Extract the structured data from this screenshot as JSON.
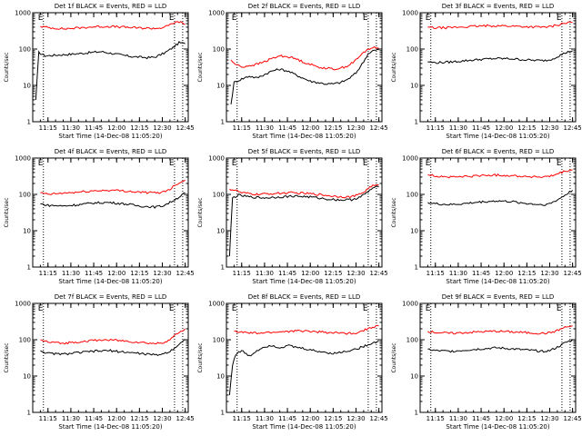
{
  "colors": {
    "events": "#000000",
    "lld": "#ff0000",
    "axes": "#000000",
    "background": "#ffffff"
  },
  "shared_axes": {
    "x_tick_labels": [
      "11:15",
      "11:30",
      "11:45",
      "12:00",
      "12:15",
      "12:30",
      "12:45"
    ],
    "x_ticks_minutes": [
      10,
      25,
      40,
      55,
      70,
      85,
      100
    ],
    "x_range_minutes": [
      0,
      102
    ],
    "xlabel": "Start Time (14-Dec-08 11:05:20)",
    "ylabel": "Counts/sec",
    "y_tick_labels": [
      "1",
      "10",
      "100",
      "1000"
    ],
    "ylim": [
      1,
      1000
    ],
    "y_scale": "log",
    "left_marker_minutes": 7,
    "right_marker_minutes": 93,
    "marker_labels": [
      "E",
      "E"
    ]
  },
  "chart_data": [
    {
      "type": "line",
      "title": "Det 1f BLACK = Events, RED = LLD",
      "series": [
        {
          "color": "black",
          "x_minutes": [
            0,
            2,
            4,
            8,
            15,
            25,
            35,
            45,
            55,
            65,
            75,
            80,
            84,
            88,
            92,
            96,
            100
          ],
          "values": [
            null,
            4,
            80,
            65,
            68,
            72,
            78,
            85,
            72,
            62,
            58,
            60,
            70,
            85,
            110,
            150,
            140
          ]
        },
        {
          "color": "red",
          "x_minutes": [
            0,
            5,
            10,
            20,
            30,
            40,
            50,
            60,
            70,
            80,
            84,
            88,
            92,
            96,
            100
          ],
          "values": [
            null,
            420,
            390,
            360,
            380,
            410,
            420,
            400,
            380,
            370,
            380,
            420,
            520,
            560,
            480
          ]
        }
      ]
    },
    {
      "type": "line",
      "title": "Det 2f BLACK = Events, RED = LLD",
      "series": [
        {
          "color": "black",
          "x_minutes": [
            0,
            3,
            5,
            10,
            15,
            20,
            25,
            30,
            35,
            40,
            45,
            50,
            55,
            60,
            65,
            70,
            75,
            80,
            85,
            90,
            93,
            96,
            100
          ],
          "values": [
            null,
            3,
            12,
            15,
            18,
            16,
            20,
            25,
            28,
            25,
            20,
            16,
            13,
            12,
            11,
            11,
            12,
            15,
            22,
            45,
            75,
            90,
            95
          ]
        },
        {
          "color": "red",
          "x_minutes": [
            0,
            3,
            5,
            10,
            15,
            20,
            25,
            30,
            35,
            40,
            45,
            50,
            55,
            60,
            65,
            70,
            75,
            80,
            85,
            90,
            93,
            96,
            100
          ],
          "values": [
            null,
            50,
            40,
            32,
            35,
            38,
            45,
            55,
            65,
            62,
            55,
            45,
            38,
            32,
            30,
            28,
            30,
            35,
            50,
            80,
            100,
            110,
            105
          ]
        }
      ]
    },
    {
      "type": "line",
      "title": "Det 3f BLACK = Events, RED = LLD",
      "series": [
        {
          "color": "black",
          "x_minutes": [
            0,
            5,
            10,
            20,
            30,
            40,
            50,
            60,
            70,
            80,
            85,
            90,
            95,
            100
          ],
          "values": [
            null,
            45,
            42,
            44,
            48,
            52,
            55,
            54,
            50,
            48,
            50,
            62,
            78,
            90
          ]
        },
        {
          "color": "red",
          "x_minutes": [
            0,
            5,
            10,
            20,
            30,
            40,
            50,
            60,
            70,
            80,
            85,
            90,
            95,
            100
          ],
          "values": [
            null,
            400,
            380,
            390,
            410,
            430,
            440,
            430,
            410,
            400,
            410,
            460,
            520,
            540
          ]
        }
      ]
    },
    {
      "type": "line",
      "title": "Det 4f BLACK = Events, RED = LLD",
      "series": [
        {
          "color": "black",
          "x_minutes": [
            0,
            5,
            10,
            20,
            30,
            40,
            50,
            60,
            70,
            80,
            85,
            90,
            95,
            100
          ],
          "values": [
            null,
            55,
            50,
            48,
            52,
            58,
            60,
            55,
            48,
            45,
            48,
            60,
            80,
            110
          ]
        },
        {
          "color": "red",
          "x_minutes": [
            0,
            5,
            10,
            20,
            30,
            40,
            50,
            60,
            70,
            80,
            85,
            90,
            95,
            100
          ],
          "values": [
            null,
            110,
            100,
            108,
            115,
            125,
            130,
            125,
            115,
            110,
            115,
            140,
            200,
            250
          ]
        }
      ]
    },
    {
      "type": "line",
      "title": "Det 5f BLACK = Events, RED = LLD",
      "series": [
        {
          "color": "black",
          "x_minutes": [
            0,
            2,
            4,
            8,
            15,
            25,
            35,
            45,
            55,
            65,
            75,
            82,
            88,
            92,
            96,
            100
          ],
          "values": [
            null,
            2,
            80,
            95,
            85,
            80,
            85,
            90,
            85,
            75,
            70,
            72,
            85,
            110,
            150,
            160
          ]
        },
        {
          "color": "red",
          "x_minutes": [
            0,
            2,
            6,
            10,
            20,
            30,
            40,
            50,
            60,
            70,
            80,
            85,
            90,
            95,
            100
          ],
          "values": [
            null,
            140,
            130,
            110,
            100,
            105,
            110,
            108,
            100,
            90,
            85,
            92,
            115,
            170,
            180
          ]
        }
      ]
    },
    {
      "type": "line",
      "title": "Det 6f BLACK = Events, RED = LLD",
      "series": [
        {
          "color": "black",
          "x_minutes": [
            0,
            5,
            10,
            20,
            30,
            40,
            50,
            60,
            70,
            80,
            85,
            90,
            95,
            100
          ],
          "values": [
            null,
            60,
            55,
            52,
            56,
            62,
            66,
            63,
            56,
            52,
            55,
            70,
            95,
            130
          ]
        },
        {
          "color": "red",
          "x_minutes": [
            0,
            5,
            10,
            20,
            30,
            40,
            50,
            60,
            70,
            80,
            85,
            90,
            95,
            100
          ],
          "values": [
            null,
            350,
            320,
            300,
            310,
            330,
            340,
            330,
            310,
            300,
            310,
            360,
            430,
            470
          ]
        }
      ]
    },
    {
      "type": "line",
      "title": "Det 7f BLACK = Events, RED = LLD",
      "series": [
        {
          "color": "black",
          "x_minutes": [
            0,
            5,
            10,
            20,
            30,
            40,
            50,
            60,
            70,
            80,
            85,
            90,
            95,
            100
          ],
          "values": [
            null,
            50,
            42,
            40,
            44,
            48,
            50,
            46,
            42,
            38,
            40,
            48,
            70,
            100
          ]
        },
        {
          "color": "red",
          "x_minutes": [
            0,
            5,
            10,
            20,
            30,
            40,
            50,
            60,
            70,
            80,
            85,
            90,
            95,
            100
          ],
          "values": [
            null,
            100,
            85,
            80,
            88,
            95,
            100,
            92,
            85,
            78,
            82,
            100,
            150,
            200
          ]
        }
      ]
    },
    {
      "type": "line",
      "title": "Det 8f BLACK = Events, RED = LLD",
      "series": [
        {
          "color": "black",
          "x_minutes": [
            0,
            2,
            4,
            6,
            10,
            15,
            20,
            25,
            30,
            35,
            40,
            45,
            50,
            55,
            60,
            65,
            70,
            75,
            80,
            85,
            90,
            95,
            100
          ],
          "values": [
            null,
            3,
            20,
            40,
            50,
            35,
            50,
            65,
            70,
            60,
            70,
            62,
            58,
            52,
            48,
            45,
            42,
            45,
            50,
            55,
            65,
            80,
            90
          ]
        },
        {
          "color": "red",
          "x_minutes": [
            0,
            5,
            10,
            20,
            30,
            40,
            50,
            60,
            70,
            80,
            85,
            90,
            95,
            100
          ],
          "values": [
            null,
            170,
            160,
            150,
            160,
            170,
            175,
            165,
            155,
            150,
            155,
            180,
            220,
            240
          ]
        }
      ]
    },
    {
      "type": "line",
      "title": "Det 9f BLACK = Events, RED = LLD",
      "series": [
        {
          "color": "black",
          "x_minutes": [
            0,
            5,
            10,
            20,
            30,
            40,
            50,
            60,
            70,
            80,
            85,
            90,
            95,
            100
          ],
          "values": [
            null,
            55,
            50,
            48,
            52,
            56,
            60,
            56,
            52,
            48,
            50,
            62,
            82,
            100
          ]
        },
        {
          "color": "red",
          "x_minutes": [
            0,
            5,
            10,
            20,
            30,
            40,
            50,
            60,
            70,
            80,
            85,
            90,
            95,
            100
          ],
          "values": [
            null,
            170,
            160,
            150,
            158,
            166,
            172,
            165,
            156,
            150,
            155,
            180,
            220,
            240
          ]
        }
      ]
    }
  ]
}
